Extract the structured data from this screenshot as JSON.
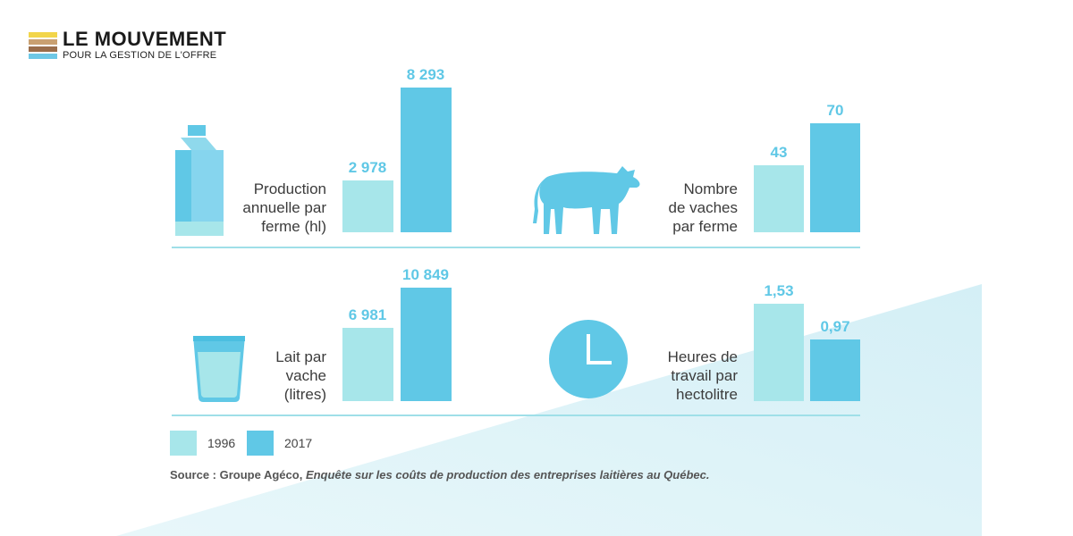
{
  "brand": {
    "title": "LE MOUVEMENT",
    "subtitle": "POUR LA GESTION DE L'OFFRE",
    "stripe_colors": [
      "#f2d54a",
      "#c9a071",
      "#9a6d4b",
      "#6ec8e6"
    ]
  },
  "colors": {
    "y1996": "#a7e6ea",
    "y2017": "#60c8e6",
    "text": "#3c3c3c",
    "rule": "#9fdfe8"
  },
  "chart_data": [
    {
      "type": "bar",
      "icon": "milk-carton-icon",
      "label_lines": [
        "Production",
        "annuelle par",
        "ferme (hl)"
      ],
      "categories": [
        "1996",
        "2017"
      ],
      "values": [
        2978,
        8293
      ],
      "value_labels": [
        "2 978",
        "8 293"
      ]
    },
    {
      "type": "bar",
      "icon": "cow-icon",
      "label_lines": [
        "Nombre",
        "de vaches",
        "par ferme"
      ],
      "categories": [
        "1996",
        "2017"
      ],
      "values": [
        43,
        70
      ],
      "value_labels": [
        "43",
        "70"
      ]
    },
    {
      "type": "bar",
      "icon": "glass-of-milk-icon",
      "label_lines": [
        "Lait par",
        "vache",
        "(litres)"
      ],
      "categories": [
        "1996",
        "2017"
      ],
      "values": [
        6981,
        10849
      ],
      "value_labels": [
        "6 981",
        "10 849"
      ]
    },
    {
      "type": "bar",
      "icon": "clock-icon",
      "label_lines": [
        "Heures de",
        "travail par",
        "hectolitre"
      ],
      "categories": [
        "1996",
        "2017"
      ],
      "values": [
        1.53,
        0.97
      ],
      "value_labels": [
        "1,53",
        "0,97"
      ]
    }
  ],
  "legend": [
    {
      "label": "1996",
      "color": "#a7e6ea"
    },
    {
      "label": "2017",
      "color": "#60c8e6"
    }
  ],
  "source": {
    "prefix": "Source : Groupe Agéco, ",
    "title": "Enquête sur les coûts de production des entreprises laitières au Québec."
  }
}
